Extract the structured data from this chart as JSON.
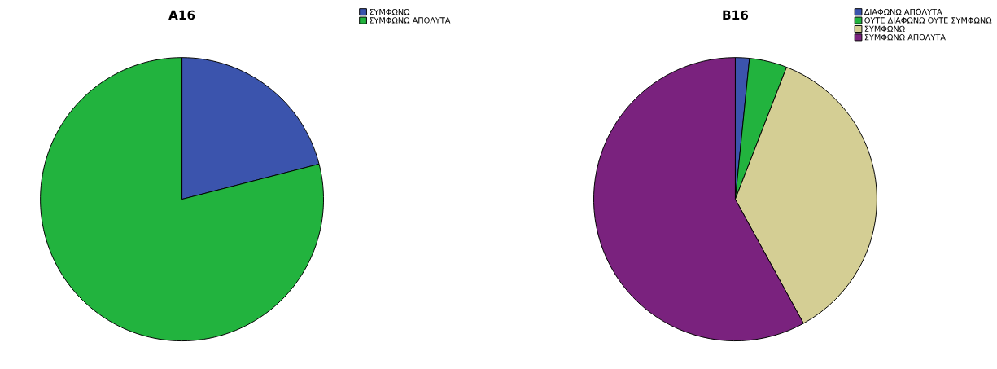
{
  "chart_data": [
    {
      "type": "pie",
      "title": "A16",
      "categories": [
        "ΣΥΜΦΩΝΩ",
        "ΣΥΜΦΩΝΩ ΑΠΟΛΥΤΑ"
      ],
      "values": [
        21,
        79
      ],
      "colors": [
        "#3b54ad",
        "#22b33e"
      ],
      "legend": "top right"
    },
    {
      "type": "pie",
      "title": "B16",
      "categories": [
        "ΔΙΑΦΩΝΩ ΑΠΟΛΥΤΑ",
        "ΟΥΤΕ ΔΙΑΦΩΝΩ ΟΥΤΕ ΣΥΜΦΩΝΩ",
        "ΣΥΜΦΩΝΩ",
        "ΣΥΜΦΩΝΩ ΑΠΟΛΥΤΑ"
      ],
      "values": [
        1.6,
        4.3,
        36.1,
        58.0
      ],
      "colors": [
        "#3b54ad",
        "#22b33e",
        "#d4ce94",
        "#7a227e"
      ],
      "legend": "top right"
    }
  ]
}
